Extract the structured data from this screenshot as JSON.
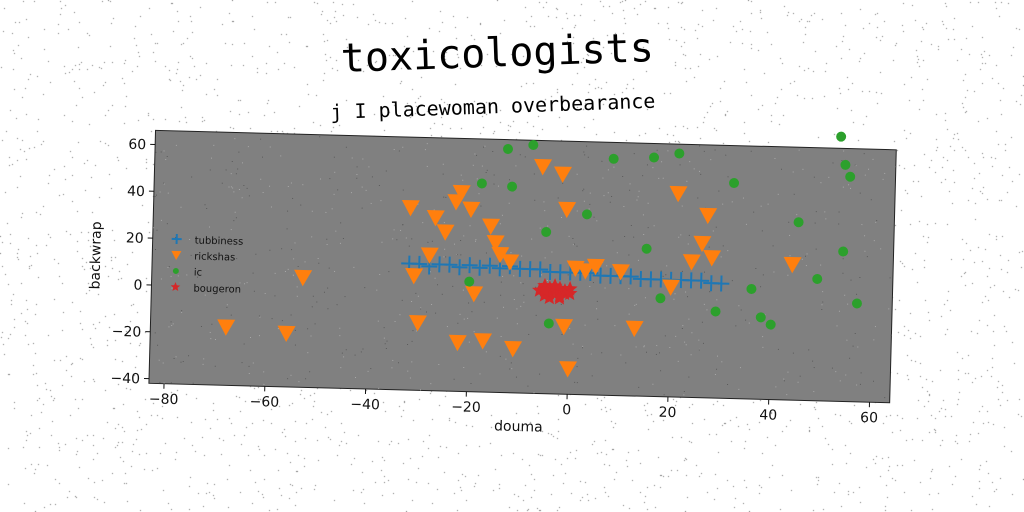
{
  "chart_data": {
    "type": "scatter",
    "title": "toxicologists",
    "subtitle": "j I placewoman overbearance",
    "xlabel": "douma",
    "ylabel": "backwrap",
    "xlim": [
      -83,
      64
    ],
    "ylim": [
      -42,
      66
    ],
    "xticks": [
      -80,
      -60,
      -40,
      -20,
      0,
      20,
      40,
      60
    ],
    "yticks": [
      -40,
      -20,
      0,
      20,
      40,
      60
    ],
    "grid": false,
    "legend_position": "center-left",
    "background": "#808080",
    "series": [
      {
        "name": "tubbiness",
        "marker": "plus",
        "color": "#1f77b4",
        "points": [
          [
            -32,
            12
          ],
          [
            -30,
            12
          ],
          [
            -28,
            11
          ],
          [
            -26,
            12
          ],
          [
            -24,
            12
          ],
          [
            -22,
            11
          ],
          [
            -20,
            12
          ],
          [
            -18,
            11
          ],
          [
            -16,
            12
          ],
          [
            -14,
            11
          ],
          [
            -12,
            12
          ],
          [
            -10,
            11
          ],
          [
            -8,
            11
          ],
          [
            -6,
            11
          ],
          [
            -4,
            10
          ],
          [
            -2,
            10
          ],
          [
            0,
            10
          ],
          [
            2,
            10
          ],
          [
            4,
            10
          ],
          [
            6,
            9
          ],
          [
            8,
            9
          ],
          [
            10,
            9
          ],
          [
            12,
            9
          ],
          [
            14,
            8
          ],
          [
            16,
            8
          ],
          [
            18,
            8
          ],
          [
            20,
            8
          ],
          [
            22,
            8
          ],
          [
            24,
            8
          ],
          [
            26,
            8
          ],
          [
            28,
            7
          ],
          [
            30,
            7
          ]
        ]
      },
      {
        "name": "rickshas",
        "marker": "triangle-down",
        "color": "#ff7f0e",
        "points": [
          [
            -68,
            -17
          ],
          [
            -56,
            -19
          ],
          [
            -53,
            5
          ],
          [
            -32,
            36
          ],
          [
            -31,
            7
          ],
          [
            -30,
            -13
          ],
          [
            -28,
            16
          ],
          [
            -27,
            32
          ],
          [
            -25,
            26
          ],
          [
            -23,
            39
          ],
          [
            -22,
            43
          ],
          [
            -22,
            -21
          ],
          [
            -20,
            36
          ],
          [
            -19,
            0
          ],
          [
            -17,
            -20
          ],
          [
            -16,
            29
          ],
          [
            -15,
            22
          ],
          [
            -14,
            17
          ],
          [
            -12,
            14
          ],
          [
            -11,
            -23
          ],
          [
            -6,
            55
          ],
          [
            -2,
            52
          ],
          [
            -1,
            37
          ],
          [
            -1,
            -13
          ],
          [
            0,
            -31
          ],
          [
            1,
            12
          ],
          [
            3,
            11
          ],
          [
            5,
            13
          ],
          [
            10,
            11
          ],
          [
            13,
            -13
          ],
          [
            20,
            5
          ],
          [
            21,
            45
          ],
          [
            24,
            16
          ],
          [
            26,
            24
          ],
          [
            27,
            36
          ],
          [
            28,
            18
          ],
          [
            44,
            16
          ]
        ]
      },
      {
        "name": "ic",
        "marker": "circle",
        "color": "#2ca02c",
        "points": [
          [
            -18,
            47
          ],
          [
            -20,
            5
          ],
          [
            -13,
            62
          ],
          [
            -12,
            46
          ],
          [
            -8,
            64
          ],
          [
            -5,
            27
          ],
          [
            -4,
            -12
          ],
          [
            3,
            35
          ],
          [
            8,
            59
          ],
          [
            15,
            21
          ],
          [
            16,
            60
          ],
          [
            18,
            0
          ],
          [
            21,
            62
          ],
          [
            29,
            -5
          ],
          [
            32,
            50
          ],
          [
            36,
            5
          ],
          [
            38,
            -7
          ],
          [
            40,
            -10
          ],
          [
            45,
            34
          ],
          [
            49,
            10
          ],
          [
            53,
            71
          ],
          [
            54,
            59
          ],
          [
            54,
            22
          ],
          [
            55,
            54
          ],
          [
            57,
            0
          ]
        ]
      },
      {
        "name": "bougeron",
        "marker": "star",
        "color": "#d62728",
        "points": [
          [
            -6,
            2
          ],
          [
            -5,
            4
          ],
          [
            -5,
            0
          ],
          [
            -4,
            3
          ],
          [
            -4,
            1
          ],
          [
            -3,
            2
          ],
          [
            -3,
            4
          ],
          [
            -2,
            0
          ],
          [
            -2,
            3
          ],
          [
            -1,
            1
          ],
          [
            -1,
            2
          ],
          [
            0,
            3
          ],
          [
            0,
            1
          ],
          [
            -4,
            -1
          ],
          [
            -2,
            -1
          ],
          [
            -5,
            2
          ]
        ]
      }
    ]
  }
}
